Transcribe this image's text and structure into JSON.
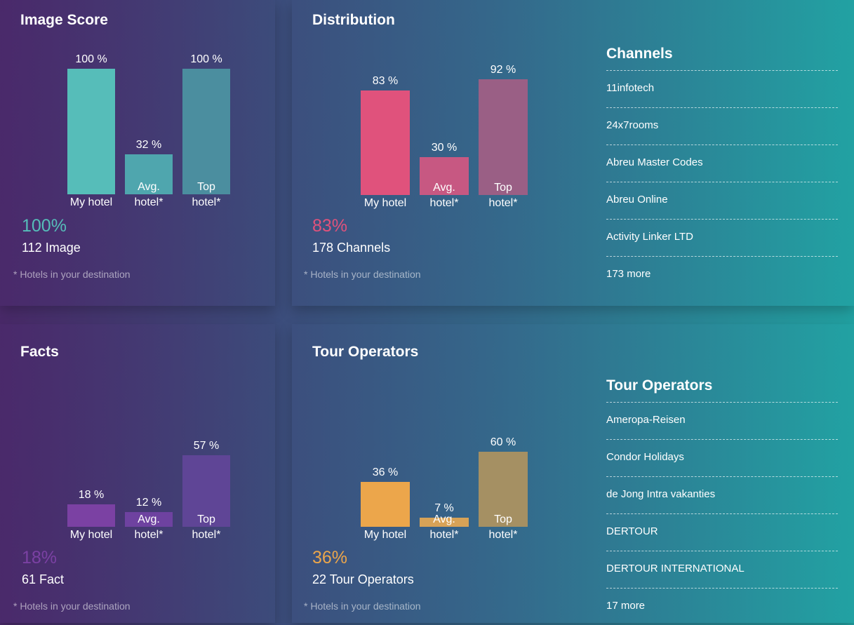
{
  "colors": {
    "image_my": "#56bdb9",
    "image_avg": "#4fa6ae",
    "image_top": "#4b8e9f",
    "dist_my": "#e0527c",
    "dist_avg": "#c75882",
    "dist_top": "#9a5f85",
    "facts_my": "#7b41a3",
    "facts_avg": "#6e42a0",
    "facts_top": "#5f4596",
    "tour_my": "#eca64b",
    "tour_avg": "#d7a257",
    "tour_top": "#a59063",
    "image_big": "#56bdb9",
    "dist_big": "#e0527c",
    "facts_big": "#7b41a3",
    "tour_big": "#eca64b"
  },
  "image_score": {
    "title": "Image Score",
    "bars": [
      {
        "pct": "100 %",
        "value": 100,
        "label1": "My hotel",
        "label2": ""
      },
      {
        "pct": "32 %",
        "value": 32,
        "label1": "Avg.",
        "label2": "hotel*"
      },
      {
        "pct": "100 %",
        "value": 100,
        "label1": "Top",
        "label2": "hotel*"
      }
    ],
    "big_value": "100%",
    "count": "112 Image",
    "note": "* Hotels in your destination"
  },
  "distribution": {
    "title": "Distribution",
    "bars": [
      {
        "pct": "83 %",
        "value": 83,
        "label1": "My hotel",
        "label2": ""
      },
      {
        "pct": "30 %",
        "value": 30,
        "label1": "Avg.",
        "label2": "hotel*"
      },
      {
        "pct": "92 %",
        "value": 92,
        "label1": "Top",
        "label2": "hotel*"
      }
    ],
    "big_value": "83%",
    "count": "178 Channels",
    "note": "* Hotels in your destination",
    "list_title": "Channels",
    "list_items": [
      "11infotech",
      "24x7rooms",
      "Abreu Master Codes",
      "Abreu Online",
      "Activity Linker LTD",
      "173  more"
    ]
  },
  "facts": {
    "title": "Facts",
    "bars": [
      {
        "pct": "18 %",
        "value": 18,
        "label1": "My hotel",
        "label2": ""
      },
      {
        "pct": "12 %",
        "value": 12,
        "label1": "Avg.",
        "label2": "hotel*"
      },
      {
        "pct": "57 %",
        "value": 57,
        "label1": "Top",
        "label2": "hotel*"
      }
    ],
    "big_value": "18%",
    "count": "61 Fact",
    "note": "* Hotels in your destination"
  },
  "tour_operators": {
    "title": "Tour Operators",
    "bars": [
      {
        "pct": "36 %",
        "value": 36,
        "label1": "My hotel",
        "label2": ""
      },
      {
        "pct": "7 %",
        "value": 7,
        "label1": "Avg.",
        "label2": "hotel*"
      },
      {
        "pct": "60 %",
        "value": 60,
        "label1": "Top",
        "label2": "hotel*"
      }
    ],
    "big_value": "36%",
    "count": "22 Tour Operators",
    "note": "* Hotels in your destination",
    "list_title": "Tour Operators",
    "list_items": [
      "Ameropa-Reisen",
      "Condor Holidays",
      "de Jong Intra vakanties",
      "DERTOUR",
      "DERTOUR INTERNATIONAL",
      "17 more"
    ]
  }
}
